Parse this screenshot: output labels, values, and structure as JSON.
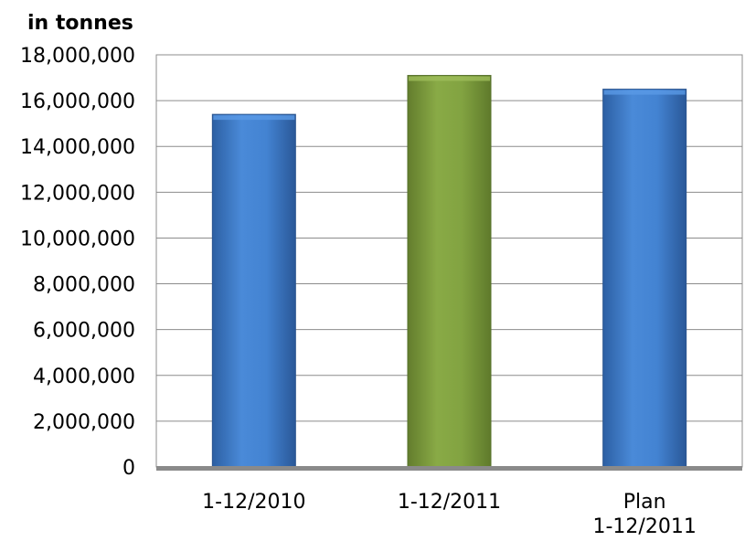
{
  "chart_data": {
    "type": "bar",
    "unit_label": "in tonnes",
    "categories": [
      [
        "1-12/2010"
      ],
      [
        "1-12/2011"
      ],
      [
        "Plan",
        "1-12/2011"
      ]
    ],
    "values": [
      15400000,
      17100000,
      16500000
    ],
    "bar_colors": [
      "#3a77c7",
      "#7f9f3f",
      "#3a77c7"
    ],
    "ylim": [
      0,
      18000000
    ],
    "ytick_step": 2000000,
    "y_ticks": [
      "0",
      "2,000,000",
      "4,000,000",
      "6,000,000",
      "8,000,000",
      "10,000,000",
      "12,000,000",
      "14,000,000",
      "16,000,000",
      "18,000,000"
    ],
    "grid": true,
    "legend": "none"
  }
}
